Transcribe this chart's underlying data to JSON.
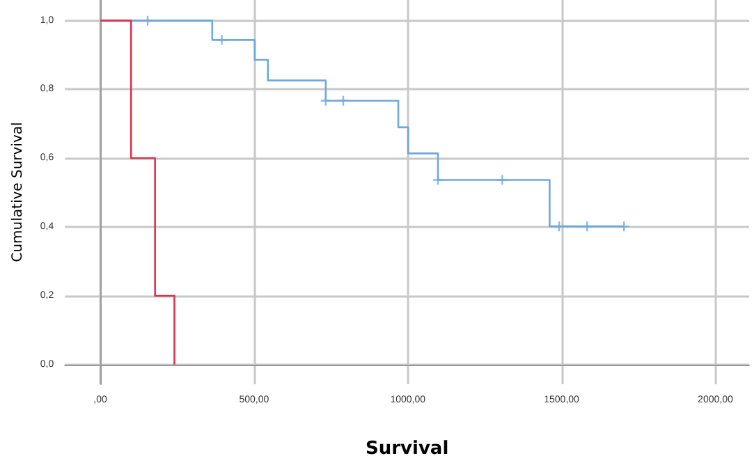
{
  "chart_data": {
    "type": "step",
    "xlabel": "Survival",
    "ylabel": "Cumulative Survival",
    "xlim": [
      -115,
      2110
    ],
    "ylim": [
      -0.057,
      1.06
    ],
    "xticks": [
      {
        "value": 0,
        "label": ",00"
      },
      {
        "value": 500,
        "label": "500,00"
      },
      {
        "value": 1000,
        "label": "1000,00"
      },
      {
        "value": 1500,
        "label": "1500,00"
      },
      {
        "value": 2000,
        "label": "2000,00"
      }
    ],
    "yticks": [
      {
        "value": 0,
        "label": "0,0"
      },
      {
        "value": 0.2,
        "label": "0,2"
      },
      {
        "value": 0.4,
        "label": "0,4"
      },
      {
        "value": 0.6,
        "label": "0,6"
      },
      {
        "value": 0.8,
        "label": "0,8"
      },
      {
        "value": 1,
        "label": "1,0"
      }
    ],
    "grid": true,
    "marker": "none",
    "series": [
      {
        "color": "#6fa8dc",
        "x": [
          0,
          364,
          502,
          545,
          733,
          969,
          1001,
          1098,
          1461,
          1703
        ],
        "values": [
          1,
          0.944,
          0.886,
          0.826,
          0.767,
          0.69,
          0.614,
          0.537,
          0.402,
          0.402
        ]
      },
      {
        "color": "#e0324f",
        "x": [
          0,
          100,
          178,
          241
        ],
        "values": [
          1,
          0.6,
          0.2,
          0
        ]
      },
      {
        "type": "scatter",
        "marker": "cross",
        "color": "#6fa8dc",
        "x": [
          154,
          395,
          733,
          790,
          1098,
          1307,
          1492,
          1583,
          1703
        ],
        "values": [
          1,
          0.944,
          0.767,
          0.767,
          0.537,
          0.537,
          0.402,
          0.402,
          0.402
        ]
      }
    ]
  }
}
